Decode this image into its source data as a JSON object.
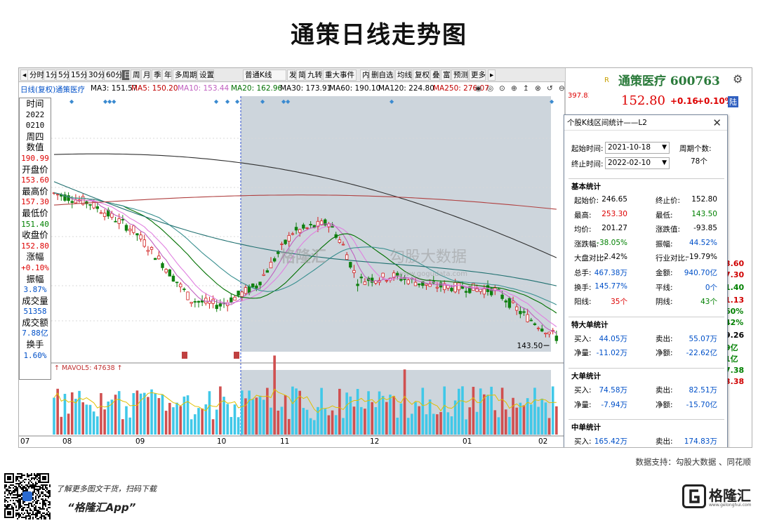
{
  "title": "通策日线走势图",
  "toolbar": [
    "分时",
    "1分",
    "5分",
    "15分",
    "30分",
    "60分",
    "日",
    "周",
    "月",
    "季",
    "年",
    "多周期",
    "设置",
    "普通K线",
    "发",
    "简",
    "九转",
    "重大事件",
    "内",
    "删自选",
    "均线",
    "复权",
    "叠",
    "富",
    "预测",
    "更多"
  ],
  "toolbar_active": "日",
  "ma_legend": {
    "prefix": "日线(复权)",
    "stock": "通策医疗",
    "items": [
      {
        "label": "MA3: 151.57",
        "color": "#000000"
      },
      {
        "label": "MA5: 150.20",
        "color": "#c00000"
      },
      {
        "label": "MA10: 153.44",
        "color": "#c060c0"
      },
      {
        "label": "MA20: 162.96",
        "color": "#007000"
      },
      {
        "label": "MA30: 173.91",
        "color": "#000000"
      },
      {
        "label": "MA60: 190.10",
        "color": "#000000"
      },
      {
        "label": "MA120: 224.80",
        "color": "#000000"
      },
      {
        "label": "MA250: 276.07",
        "color": "#c00000"
      }
    ],
    "y_top": "397.83"
  },
  "info_panel": [
    {
      "t": "时间",
      "c": "lbl"
    },
    {
      "t": "2022",
      "c": "blk"
    },
    {
      "t": "0210",
      "c": "blk"
    },
    {
      "t": "周四",
      "c": "lbl"
    },
    {
      "t": "数值",
      "c": "lbl"
    },
    {
      "t": "190.99",
      "c": "red"
    },
    {
      "t": "开盘价",
      "c": "lbl"
    },
    {
      "t": "153.60",
      "c": "red"
    },
    {
      "t": "最高价",
      "c": "lbl"
    },
    {
      "t": "157.30",
      "c": "red"
    },
    {
      "t": "最低价",
      "c": "lbl"
    },
    {
      "t": "151.40",
      "c": "grn"
    },
    {
      "t": "收盘价",
      "c": "lbl"
    },
    {
      "t": "152.80",
      "c": "red"
    },
    {
      "t": "涨幅",
      "c": "lbl"
    },
    {
      "t": "+0.10%",
      "c": "red"
    },
    {
      "t": "振幅",
      "c": "lbl"
    },
    {
      "t": "3.87%",
      "c": "blu"
    },
    {
      "t": "成交量",
      "c": "lbl"
    },
    {
      "t": "51358",
      "c": "blu"
    },
    {
      "t": "成交额",
      "c": "lbl"
    },
    {
      "t": "7.88亿",
      "c": "blu"
    },
    {
      "t": "换手",
      "c": "lbl"
    },
    {
      "t": "1.60%",
      "c": "blu"
    }
  ],
  "quote": {
    "name": "通策医疗 600763",
    "price": "152.80",
    "change": "+0.16",
    "change_pct": "+0.10%",
    "lu": "陆",
    "r_mark": "R"
  },
  "popup": {
    "title": "个股K线区间统计——L2",
    "start_label": "起始时间:",
    "start": "2021-10-18",
    "end_label": "终止时间:",
    "end": "2022-02-10",
    "period_label": "周期个数:",
    "period": "78个",
    "basic_title": "基本统计",
    "basic": [
      [
        "起始价:",
        "246.65",
        "",
        "终止价:",
        "152.80",
        ""
      ],
      [
        "最高:",
        "253.30",
        "rd",
        "最低:",
        "143.50",
        "gn"
      ],
      [
        "均价:",
        "201.27",
        "",
        "涨跌值:",
        "-93.85",
        ""
      ],
      [
        "涨跌幅:",
        "-38.05%",
        "gn",
        "振幅:",
        "44.52%",
        "bl"
      ],
      [
        "大盘对比:",
        "-2.42%",
        "",
        "行业对比:",
        "-19.79%",
        ""
      ],
      [
        "总手:",
        "467.38万",
        "bl",
        "金额:",
        "940.70亿",
        "bl"
      ],
      [
        "换手:",
        "145.77%",
        "bl",
        "平线:",
        "0个",
        "bl"
      ],
      [
        "阳线:",
        "35个",
        "rd",
        "阴线:",
        "43个",
        "gn"
      ]
    ],
    "special_title": "特大单统计",
    "special": [
      [
        "买入:",
        "44.05万",
        "bl",
        "卖出:",
        "55.07万",
        "bl"
      ],
      [
        "净量:",
        "-11.02万",
        "bl",
        "净额:",
        "-22.62亿",
        "bl"
      ]
    ],
    "large_title": "大单统计",
    "large": [
      [
        "买入:",
        "74.58万",
        "bl",
        "卖出:",
        "82.51万",
        "bl"
      ],
      [
        "净量:",
        "-7.94万",
        "bl",
        "净额:",
        "-15.70亿",
        "bl"
      ]
    ],
    "medium_title": "中单统计",
    "medium": [
      [
        "买入:",
        "165.42万",
        "bl",
        "卖出:",
        "174.83万",
        "bl"
      ]
    ]
  },
  "right_strip": [
    {
      "t": "3.60",
      "color": "#d00000"
    },
    {
      "t": "7.30",
      "color": "#d00000"
    },
    {
      "t": "1.40",
      "color": "#008000"
    },
    {
      "t": "1.13",
      "color": "#d00000"
    },
    {
      "t": "60%",
      "color": "#008000"
    },
    {
      "t": "42%",
      "color": "#008000"
    },
    {
      "t": "9.26",
      "color": "#000000"
    },
    {
      "t": "9亿",
      "color": "#008000"
    },
    {
      "t": "1亿",
      "color": "#008000"
    },
    {
      "t": "7.38",
      "color": "#008000"
    },
    {
      "t": "3.38",
      "color": "#d00000"
    }
  ],
  "vol_legend": "MAVOL5: 47638",
  "low_label": "143.50",
  "x_labels": [
    "07",
    "08",
    "09",
    "10",
    "11",
    "12",
    "01",
    "02"
  ],
  "watermark": {
    "brand": "格隆汇",
    "name": "勾股大数据",
    "url": "www.gogudata.com"
  },
  "credit": "数据支持：勾股大数据 、同花顺",
  "promo_line1": "了解更多图文干货，扫码下载",
  "promo_line2": "“格隆汇App”",
  "logo_text": "格隆汇",
  "logo_url": "www.gelonghui.com",
  "chart_data": {
    "type": "candlestick",
    "title": "通策日线走势图",
    "x_months": [
      "07",
      "08",
      "09",
      "10",
      "11",
      "12",
      "01",
      "02"
    ],
    "ylim": [
      140,
      400
    ],
    "close_by_period": [
      {
        "period": "2021-08 start",
        "close": 310
      },
      {
        "period": "2021-08 mid",
        "close": 280
      },
      {
        "period": "2021-09 mid",
        "close": 205
      },
      {
        "period": "2021-10 early",
        "close": 270
      },
      {
        "period": "2021-10-18",
        "close": 246.65
      },
      {
        "period": "2021-11 mid",
        "close": 215
      },
      {
        "period": "2021-12 mid",
        "close": 205
      },
      {
        "period": "2022-01 mid",
        "close": 200
      },
      {
        "period": "2022-02-10",
        "close": 152.8
      }
    ],
    "high_label": "397.83",
    "low_label": "143.50"
  },
  "colors": {
    "up": "#d02020",
    "down": "#108010",
    "highlight": "#c8d0d8",
    "vol_up": "#d05050",
    "vol_down": "#40c8e8"
  }
}
